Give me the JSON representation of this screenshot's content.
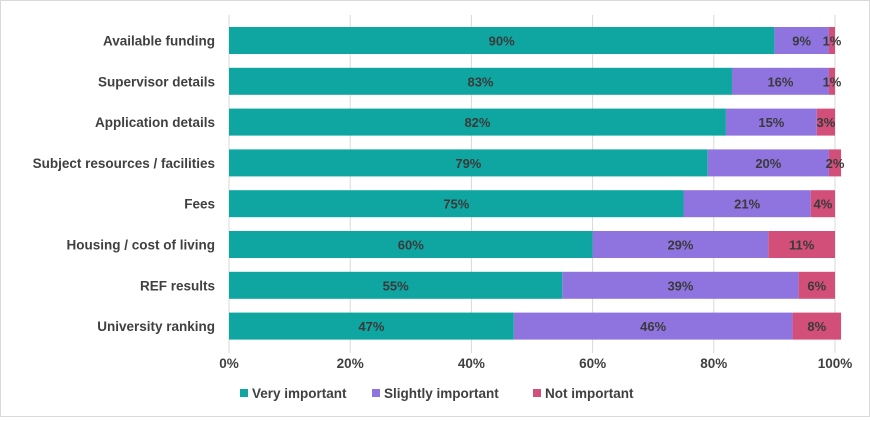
{
  "chart_data": {
    "type": "bar",
    "orientation": "horizontal",
    "stacked": true,
    "categories": [
      "Available funding",
      "Supervisor details",
      "Application details",
      "Subject resources / facilities",
      "Fees",
      "Housing / cost of living",
      "REF results",
      "University ranking"
    ],
    "series": [
      {
        "name": "Very important",
        "color": "#0fa5a0",
        "values": [
          90,
          83,
          82,
          79,
          75,
          60,
          55,
          47
        ],
        "labels": [
          "90%",
          "83%",
          "82%",
          "79%",
          "75%",
          "60%",
          "55%",
          "47%"
        ]
      },
      {
        "name": "Slightly important",
        "color": "#8f74e0",
        "values": [
          9,
          16,
          15,
          20,
          21,
          29,
          39,
          46
        ],
        "labels": [
          "9%",
          "16%",
          "15%",
          "20%",
          "21%",
          "29%",
          "39%",
          "46%"
        ]
      },
      {
        "name": "Not important",
        "color": "#d24f7a",
        "values": [
          1,
          1,
          3,
          2,
          4,
          11,
          6,
          8
        ],
        "labels": [
          "1%",
          "1%",
          "3%",
          "2%",
          "4%",
          "11%",
          "6%",
          "8%"
        ]
      }
    ],
    "xlim": [
      0,
      100
    ],
    "xticks": [
      "0%",
      "20%",
      "40%",
      "60%",
      "80%",
      "100%"
    ],
    "grid": true,
    "legend_position": "bottom"
  }
}
